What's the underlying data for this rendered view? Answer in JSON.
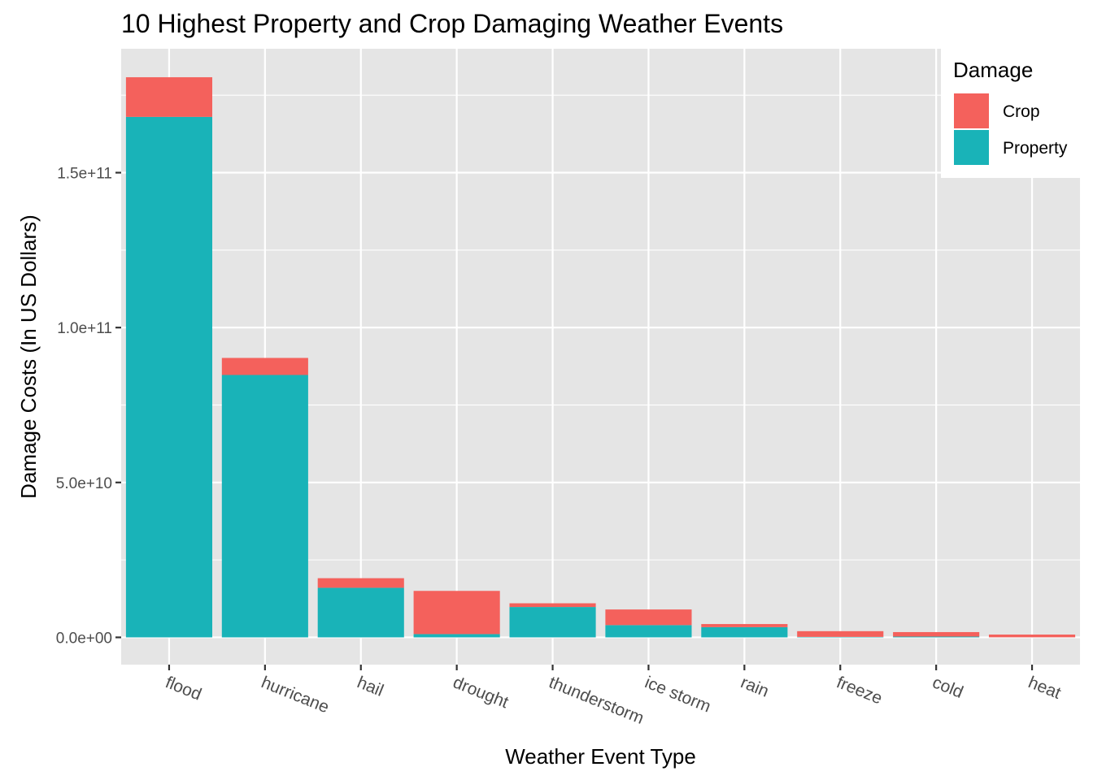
{
  "chart_data": {
    "type": "bar",
    "stacked": true,
    "title": "10 Highest Property and Crop Damaging Weather Events",
    "xlabel": "Weather Event Type",
    "ylabel": "Damage Costs (In US Dollars)",
    "categories": [
      "flood",
      "hurricane",
      "hail",
      "drought",
      "thunderstorm",
      "ice storm",
      "rain",
      "freeze",
      "cold",
      "heat"
    ],
    "series": [
      {
        "name": "Property",
        "color": "#19b3b8",
        "values": [
          168000000000,
          84700000000,
          16000000000,
          1050000000,
          9800000000,
          3950000000,
          3300000000,
          150000000,
          250000000,
          20000000
        ]
      },
      {
        "name": "Crop",
        "color": "#f4615c",
        "values": [
          12800000000,
          5500000000,
          3100000000,
          13950000000,
          1200000000,
          5050000000,
          1000000000,
          1850000000,
          1450000000,
          880000000
        ]
      }
    ],
    "ylim": [
      -8800000000,
      190000000000
    ],
    "yticks": [
      0,
      50000000000,
      100000000000,
      150000000000
    ],
    "ytick_labels": [
      "0.0e+00",
      "5.0e+10",
      "1.0e+11",
      "1.5e+11"
    ],
    "grid": true,
    "legend": {
      "title": "Damage",
      "position": "top-right",
      "entries": [
        "Crop",
        "Property"
      ]
    }
  }
}
